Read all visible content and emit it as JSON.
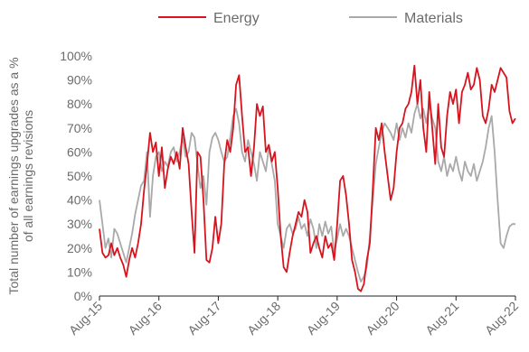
{
  "chart_data": {
    "type": "line",
    "title": "",
    "ylabel": "Total number of earnings upgrades as a % of all earnings revisions",
    "ylabel_lines": [
      "Total number of earnings upgrades as a %",
      "of all earnings revisions"
    ],
    "xlabel": "",
    "ylim": [
      0,
      100
    ],
    "y_ticks": [
      0,
      10,
      20,
      30,
      40,
      50,
      60,
      70,
      80,
      90,
      100
    ],
    "y_tick_labels": [
      "0%",
      "10%",
      "20%",
      "30%",
      "40%",
      "50%",
      "60%",
      "70%",
      "80%",
      "90%",
      "100%"
    ],
    "x_tick_labels": [
      "Aug-15",
      "Aug-16",
      "Aug-17",
      "Aug-18",
      "Aug-19",
      "Aug-20",
      "Aug-21",
      "Aug-22"
    ],
    "xlim_years": [
      0,
      7
    ],
    "legend_position": "top",
    "grid": false,
    "series": [
      {
        "name": "Energy",
        "color": "#d7141e",
        "points": [
          [
            0.0,
            28
          ],
          [
            0.05,
            18
          ],
          [
            0.1,
            16
          ],
          [
            0.15,
            17
          ],
          [
            0.2,
            22
          ],
          [
            0.25,
            17
          ],
          [
            0.3,
            20
          ],
          [
            0.35,
            16
          ],
          [
            0.4,
            13
          ],
          [
            0.45,
            8
          ],
          [
            0.5,
            15
          ],
          [
            0.55,
            20
          ],
          [
            0.6,
            16
          ],
          [
            0.65,
            22
          ],
          [
            0.7,
            30
          ],
          [
            0.75,
            44
          ],
          [
            0.8,
            55
          ],
          [
            0.85,
            68
          ],
          [
            0.9,
            60
          ],
          [
            0.95,
            64
          ],
          [
            1.0,
            50
          ],
          [
            1.05,
            62
          ],
          [
            1.1,
            45
          ],
          [
            1.15,
            53
          ],
          [
            1.2,
            58
          ],
          [
            1.25,
            55
          ],
          [
            1.3,
            60
          ],
          [
            1.35,
            53
          ],
          [
            1.4,
            70
          ],
          [
            1.45,
            62
          ],
          [
            1.5,
            55
          ],
          [
            1.55,
            35
          ],
          [
            1.6,
            18
          ],
          [
            1.65,
            60
          ],
          [
            1.7,
            58
          ],
          [
            1.75,
            40
          ],
          [
            1.8,
            15
          ],
          [
            1.85,
            14
          ],
          [
            1.9,
            20
          ],
          [
            1.95,
            33
          ],
          [
            2.0,
            22
          ],
          [
            2.05,
            30
          ],
          [
            2.1,
            55
          ],
          [
            2.15,
            65
          ],
          [
            2.2,
            60
          ],
          [
            2.25,
            70
          ],
          [
            2.3,
            88
          ],
          [
            2.35,
            92
          ],
          [
            2.4,
            75
          ],
          [
            2.45,
            60
          ],
          [
            2.5,
            62
          ],
          [
            2.55,
            50
          ],
          [
            2.6,
            62
          ],
          [
            2.65,
            80
          ],
          [
            2.7,
            75
          ],
          [
            2.75,
            79
          ],
          [
            2.8,
            60
          ],
          [
            2.85,
            63
          ],
          [
            2.9,
            56
          ],
          [
            2.95,
            60
          ],
          [
            3.0,
            45
          ],
          [
            3.05,
            25
          ],
          [
            3.1,
            12
          ],
          [
            3.15,
            10
          ],
          [
            3.2,
            18
          ],
          [
            3.25,
            25
          ],
          [
            3.3,
            30
          ],
          [
            3.35,
            35
          ],
          [
            3.4,
            33
          ],
          [
            3.45,
            40
          ],
          [
            3.5,
            35
          ],
          [
            3.55,
            18
          ],
          [
            3.6,
            22
          ],
          [
            3.65,
            25
          ],
          [
            3.7,
            20
          ],
          [
            3.75,
            16
          ],
          [
            3.8,
            25
          ],
          [
            3.85,
            20
          ],
          [
            3.9,
            22
          ],
          [
            3.95,
            15
          ],
          [
            4.0,
            30
          ],
          [
            4.05,
            48
          ],
          [
            4.1,
            50
          ],
          [
            4.15,
            42
          ],
          [
            4.2,
            30
          ],
          [
            4.25,
            15
          ],
          [
            4.3,
            10
          ],
          [
            4.35,
            3
          ],
          [
            4.4,
            2
          ],
          [
            4.45,
            5
          ],
          [
            4.5,
            15
          ],
          [
            4.55,
            22
          ],
          [
            4.6,
            45
          ],
          [
            4.65,
            70
          ],
          [
            4.7,
            65
          ],
          [
            4.75,
            72
          ],
          [
            4.8,
            60
          ],
          [
            4.85,
            50
          ],
          [
            4.9,
            40
          ],
          [
            4.95,
            45
          ],
          [
            5.0,
            60
          ],
          [
            5.05,
            70
          ],
          [
            5.1,
            72
          ],
          [
            5.15,
            78
          ],
          [
            5.2,
            80
          ],
          [
            5.25,
            85
          ],
          [
            5.3,
            96
          ],
          [
            5.35,
            80
          ],
          [
            5.4,
            90
          ],
          [
            5.45,
            70
          ],
          [
            5.5,
            60
          ],
          [
            5.55,
            85
          ],
          [
            5.6,
            70
          ],
          [
            5.65,
            55
          ],
          [
            5.7,
            80
          ],
          [
            5.75,
            62
          ],
          [
            5.8,
            58
          ],
          [
            5.85,
            75
          ],
          [
            5.9,
            85
          ],
          [
            5.95,
            80
          ],
          [
            6.0,
            86
          ],
          [
            6.05,
            72
          ],
          [
            6.1,
            85
          ],
          [
            6.15,
            88
          ],
          [
            6.2,
            93
          ],
          [
            6.25,
            86
          ],
          [
            6.3,
            88
          ],
          [
            6.35,
            95
          ],
          [
            6.4,
            90
          ],
          [
            6.45,
            75
          ],
          [
            6.5,
            72
          ],
          [
            6.55,
            78
          ],
          [
            6.6,
            88
          ],
          [
            6.65,
            85
          ],
          [
            6.7,
            90
          ],
          [
            6.75,
            95
          ],
          [
            6.8,
            93
          ],
          [
            6.85,
            91
          ],
          [
            6.9,
            77
          ],
          [
            6.95,
            72
          ],
          [
            7.0,
            74
          ]
        ]
      },
      {
        "name": "Materials",
        "color": "#a9a9a9",
        "points": [
          [
            0.0,
            40
          ],
          [
            0.05,
            30
          ],
          [
            0.1,
            20
          ],
          [
            0.15,
            24
          ],
          [
            0.2,
            16
          ],
          [
            0.25,
            28
          ],
          [
            0.3,
            26
          ],
          [
            0.35,
            22
          ],
          [
            0.4,
            18
          ],
          [
            0.45,
            14
          ],
          [
            0.5,
            20
          ],
          [
            0.55,
            26
          ],
          [
            0.6,
            34
          ],
          [
            0.65,
            40
          ],
          [
            0.7,
            46
          ],
          [
            0.75,
            48
          ],
          [
            0.8,
            60
          ],
          [
            0.85,
            33
          ],
          [
            0.9,
            50
          ],
          [
            0.95,
            58
          ],
          [
            1.0,
            60
          ],
          [
            1.05,
            52
          ],
          [
            1.1,
            56
          ],
          [
            1.15,
            54
          ],
          [
            1.2,
            60
          ],
          [
            1.25,
            62
          ],
          [
            1.3,
            56
          ],
          [
            1.35,
            60
          ],
          [
            1.4,
            66
          ],
          [
            1.45,
            58
          ],
          [
            1.5,
            60
          ],
          [
            1.55,
            68
          ],
          [
            1.6,
            66
          ],
          [
            1.65,
            55
          ],
          [
            1.7,
            45
          ],
          [
            1.75,
            50
          ],
          [
            1.8,
            38
          ],
          [
            1.85,
            60
          ],
          [
            1.9,
            66
          ],
          [
            1.95,
            68
          ],
          [
            2.0,
            65
          ],
          [
            2.05,
            60
          ],
          [
            2.1,
            56
          ],
          [
            2.15,
            58
          ],
          [
            2.2,
            66
          ],
          [
            2.25,
            75
          ],
          [
            2.3,
            78
          ],
          [
            2.35,
            72
          ],
          [
            2.4,
            60
          ],
          [
            2.45,
            56
          ],
          [
            2.5,
            65
          ],
          [
            2.55,
            60
          ],
          [
            2.6,
            55
          ],
          [
            2.65,
            48
          ],
          [
            2.7,
            60
          ],
          [
            2.75,
            56
          ],
          [
            2.8,
            52
          ],
          [
            2.85,
            62
          ],
          [
            2.9,
            55
          ],
          [
            2.95,
            48
          ],
          [
            3.0,
            30
          ],
          [
            3.05,
            25
          ],
          [
            3.1,
            20
          ],
          [
            3.15,
            28
          ],
          [
            3.2,
            30
          ],
          [
            3.25,
            26
          ],
          [
            3.3,
            28
          ],
          [
            3.35,
            33
          ],
          [
            3.4,
            28
          ],
          [
            3.45,
            30
          ],
          [
            3.5,
            25
          ],
          [
            3.55,
            32
          ],
          [
            3.6,
            28
          ],
          [
            3.65,
            20
          ],
          [
            3.7,
            30
          ],
          [
            3.75,
            25
          ],
          [
            3.8,
            31
          ],
          [
            3.85,
            26
          ],
          [
            3.9,
            29
          ],
          [
            3.95,
            18
          ],
          [
            4.0,
            24
          ],
          [
            4.05,
            30
          ],
          [
            4.1,
            25
          ],
          [
            4.15,
            28
          ],
          [
            4.2,
            25
          ],
          [
            4.25,
            20
          ],
          [
            4.3,
            15
          ],
          [
            4.35,
            10
          ],
          [
            4.4,
            6
          ],
          [
            4.45,
            8
          ],
          [
            4.5,
            12
          ],
          [
            4.55,
            25
          ],
          [
            4.6,
            40
          ],
          [
            4.65,
            55
          ],
          [
            4.7,
            62
          ],
          [
            4.75,
            68
          ],
          [
            4.8,
            72
          ],
          [
            4.85,
            70
          ],
          [
            4.9,
            68
          ],
          [
            4.95,
            65
          ],
          [
            5.0,
            72
          ],
          [
            5.05,
            65
          ],
          [
            5.1,
            70
          ],
          [
            5.15,
            66
          ],
          [
            5.2,
            72
          ],
          [
            5.25,
            68
          ],
          [
            5.3,
            76
          ],
          [
            5.35,
            80
          ],
          [
            5.4,
            74
          ],
          [
            5.45,
            78
          ],
          [
            5.5,
            72
          ],
          [
            5.55,
            80
          ],
          [
            5.6,
            74
          ],
          [
            5.65,
            70
          ],
          [
            5.7,
            56
          ],
          [
            5.75,
            52
          ],
          [
            5.8,
            58
          ],
          [
            5.85,
            50
          ],
          [
            5.9,
            55
          ],
          [
            5.95,
            52
          ],
          [
            6.0,
            58
          ],
          [
            6.05,
            52
          ],
          [
            6.1,
            48
          ],
          [
            6.15,
            56
          ],
          [
            6.2,
            52
          ],
          [
            6.25,
            50
          ],
          [
            6.3,
            55
          ],
          [
            6.35,
            48
          ],
          [
            6.4,
            52
          ],
          [
            6.45,
            56
          ],
          [
            6.5,
            62
          ],
          [
            6.55,
            70
          ],
          [
            6.6,
            75
          ],
          [
            6.65,
            60
          ],
          [
            6.7,
            40
          ],
          [
            6.75,
            22
          ],
          [
            6.8,
            20
          ],
          [
            6.85,
            25
          ],
          [
            6.9,
            29
          ],
          [
            6.95,
            30
          ],
          [
            7.0,
            30
          ]
        ]
      }
    ]
  }
}
